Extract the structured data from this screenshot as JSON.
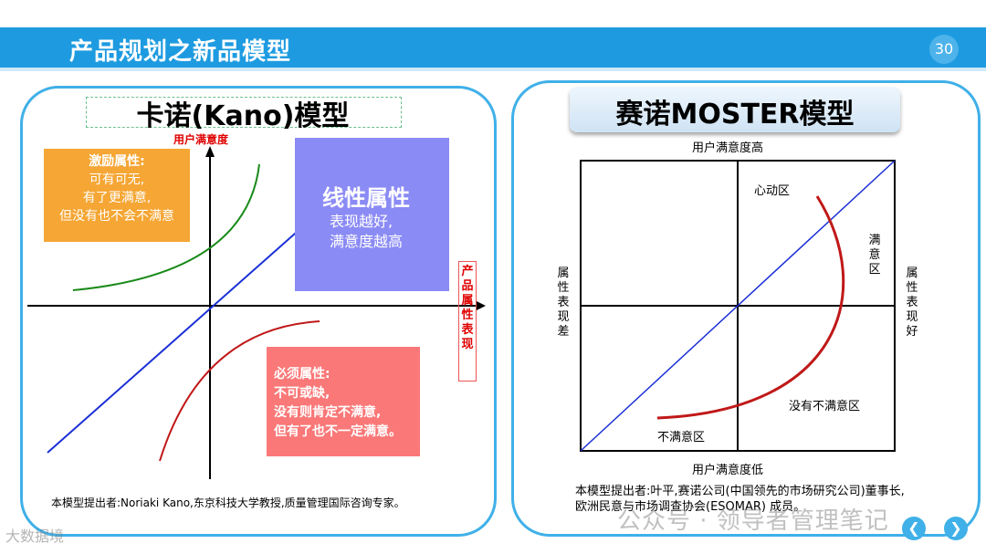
{
  "header": {
    "title": "产品规划之新品模型",
    "page_number": "30"
  },
  "kano": {
    "title": "卡诺(Kano)模型",
    "y_axis_label": "用户满意度",
    "x_axis_label": "产品属性表现",
    "excite": {
      "title": "激励属性:",
      "lines": [
        "可有可无,",
        "有了更满意,",
        "但没有也不会不满意"
      ]
    },
    "linear": {
      "title": "线性属性",
      "lines": [
        "表现越好,",
        "满意度越高"
      ]
    },
    "must": {
      "title": "必须属性:",
      "lines": [
        "不可或缺,",
        "没有则肯定不满意,",
        "但有了也不一定满意。"
      ]
    },
    "note": "本模型提出者:Noriaki Kano,东京科技大学教授,质量管理国际咨询专家。"
  },
  "moster": {
    "title": "赛诺MOSTER模型",
    "top_label": "用户满意度高",
    "bottom_label": "用户满意度低",
    "left_label": "属性表现差",
    "right_label": "属性表现好",
    "zone_heart": "心动区",
    "zone_satisfied": "满意区",
    "zone_no_dissatisfied": "没有不满意区",
    "zone_dissatisfied": "不满意区",
    "note_line1": "本模型提出者:叶平,赛诺公司(中国领先的市场研究公司)董事长,",
    "note_line2": "欧洲民意与市场调查协会(ESOMAR) 成员。"
  },
  "watermarks": {
    "left": "大数据境",
    "right": "公众号 · 领导者管理笔记"
  },
  "nav": {
    "prev_icon": "chevron-left-icon",
    "next_icon": "chevron-right-icon",
    "prev_glyph": "❮",
    "next_glyph": "❯"
  },
  "colors": {
    "header": "#1e9be0",
    "panel_border": "#3fb0e8",
    "excite": "#f5a634",
    "linear": "#8b8bf5",
    "must": "#fa7878",
    "axis_label": "#e00000"
  }
}
